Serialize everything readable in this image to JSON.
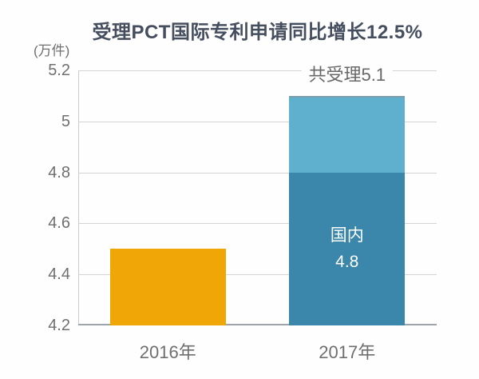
{
  "chart_data": {
    "type": "bar",
    "stacked": true,
    "title": "受理PCT国际专利申请同比增长12.5%",
    "unit_label": "(万件)",
    "xlabel": "",
    "ylabel": "",
    "ylim": [
      4.2,
      5.2
    ],
    "yticks": [
      5.2,
      5,
      4.8,
      4.6,
      4.4,
      4.2
    ],
    "ytick_labels": [
      "5.2",
      "5",
      "4.8",
      "4.6",
      "4.4",
      "4.2"
    ],
    "categories": [
      "2016年",
      "2017年"
    ],
    "grid": true,
    "legend": "none",
    "bars": [
      {
        "category": "2016年",
        "total": 4.5,
        "segments": [
          {
            "value": 4.5,
            "color": "#f1a607",
            "inner_label_lines": []
          }
        ]
      },
      {
        "category": "2017年",
        "total": 5.1,
        "annotation_above": "共受理5.1",
        "segments": [
          {
            "name": "国内",
            "value": 4.8,
            "color": "#3a87ab",
            "inner_label_lines": [
              "国内",
              "4.8"
            ]
          },
          {
            "value": 0.3,
            "color": "#5fafce",
            "inner_label_lines": []
          }
        ]
      }
    ],
    "colors": {
      "title_text": "#454e5e",
      "axis_text": "#6f6f6f",
      "gridline": "#d4d4d4",
      "axis_line": "#9ea4ab",
      "bar_2016": "#f1a607",
      "bar_2017_domestic": "#3a87ab",
      "bar_2017_upper": "#5fafce"
    }
  }
}
